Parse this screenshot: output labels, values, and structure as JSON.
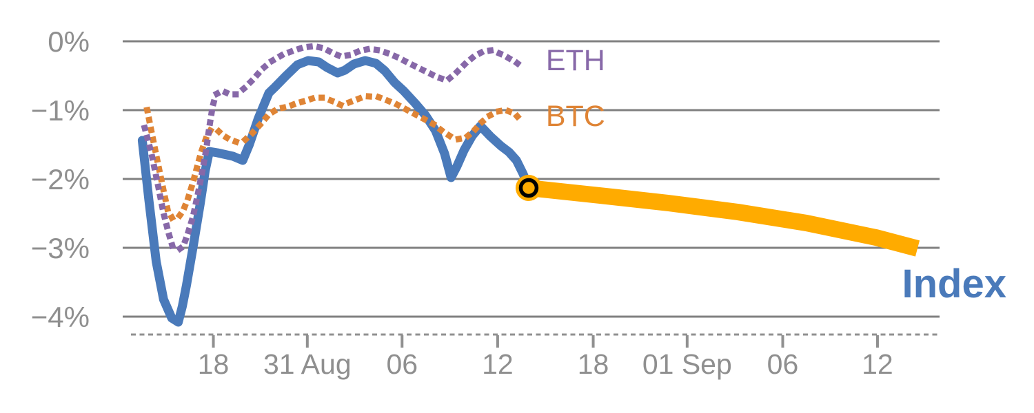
{
  "colors": {
    "grid": "#808080",
    "axis": "#909090",
    "axis_text": "#8F8F8F",
    "index_blue": "#4A7ABA",
    "eth_purple": "#8768A8",
    "btc_orange": "#DF8435",
    "projection_amber": "#FFAB00",
    "marker_ring": "#000000"
  },
  "chart_data": {
    "type": "line",
    "title": "",
    "xlabel": "",
    "ylabel": "",
    "grid": "horizontal",
    "legend_position": "inline-labels",
    "y_axis": {
      "unit": "%",
      "range": [
        -4.5,
        0
      ],
      "ticks": [
        {
          "label": "0%",
          "value": 0
        },
        {
          "label": "−1%",
          "value": -1
        },
        {
          "label": "−2%",
          "value": -2
        },
        {
          "label": "−3%",
          "value": -3
        },
        {
          "label": "−4%",
          "value": -4
        }
      ]
    },
    "x_axis": {
      "style": "dashed-baseline",
      "ticks": [
        {
          "label": "18",
          "t": 11.1
        },
        {
          "label": "31 Aug",
          "t": 22.6
        },
        {
          "label": "06",
          "t": 34.2
        },
        {
          "label": "12",
          "t": 45.9
        },
        {
          "label": "18",
          "t": 57.6
        },
        {
          "label": "01 Sep",
          "t": 69.1
        },
        {
          "label": "06",
          "t": 80.8
        },
        {
          "label": "12",
          "t": 92.4
        }
      ]
    },
    "series": [
      {
        "id": "index",
        "name": "Index",
        "color": "#4A7ABA",
        "line_style": "solid",
        "stroke_width": 13,
        "label": {
          "text": "Index",
          "t": 95.4,
          "value": -3.51,
          "font_size": 58,
          "bold": true
        },
        "points": [
          [
            2.4,
            -1.44
          ],
          [
            3.2,
            -2.3
          ],
          [
            4.1,
            -3.2
          ],
          [
            5.0,
            -3.75
          ],
          [
            6.0,
            -4.02
          ],
          [
            6.8,
            -4.08
          ],
          [
            7.3,
            -3.85
          ],
          [
            7.8,
            -3.55
          ],
          [
            8.6,
            -3.0
          ],
          [
            9.5,
            -2.35
          ],
          [
            10.1,
            -1.88
          ],
          [
            10.6,
            -1.6
          ],
          [
            11.6,
            -1.62
          ],
          [
            13.5,
            -1.67
          ],
          [
            14.7,
            -1.73
          ],
          [
            15.5,
            -1.5
          ],
          [
            16.6,
            -1.12
          ],
          [
            17.9,
            -0.75
          ],
          [
            18.6,
            -0.67
          ],
          [
            20.0,
            -0.5
          ],
          [
            21.4,
            -0.34
          ],
          [
            22.7,
            -0.28
          ],
          [
            24.0,
            -0.3
          ],
          [
            25.0,
            -0.38
          ],
          [
            26.3,
            -0.46
          ],
          [
            27.2,
            -0.42
          ],
          [
            28.3,
            -0.33
          ],
          [
            29.7,
            -0.28
          ],
          [
            31.0,
            -0.32
          ],
          [
            32.1,
            -0.43
          ],
          [
            33.3,
            -0.6
          ],
          [
            34.4,
            -0.72
          ],
          [
            35.8,
            -0.9
          ],
          [
            37.1,
            -1.08
          ],
          [
            38.3,
            -1.3
          ],
          [
            39.4,
            -1.63
          ],
          [
            40.2,
            -1.98
          ],
          [
            40.9,
            -1.82
          ],
          [
            41.8,
            -1.58
          ],
          [
            42.8,
            -1.37
          ],
          [
            43.8,
            -1.23
          ],
          [
            45.0,
            -1.38
          ],
          [
            46.3,
            -1.52
          ],
          [
            47.3,
            -1.61
          ],
          [
            48.2,
            -1.73
          ],
          [
            49.0,
            -1.92
          ],
          [
            49.7,
            -2.12
          ]
        ]
      },
      {
        "id": "index-projection",
        "name": "Index projection",
        "color": "#FFAB00",
        "line_style": "solid",
        "linecap": "butt",
        "stroke_width": 24,
        "points": [
          [
            49.7,
            -2.13
          ],
          [
            58.4,
            -2.24
          ],
          [
            66.8,
            -2.35
          ],
          [
            75.3,
            -2.48
          ],
          [
            83.7,
            -2.64
          ],
          [
            92.2,
            -2.85
          ],
          [
            97.3,
            -3.01
          ]
        ]
      },
      {
        "id": "btc",
        "name": "BTC",
        "color": "#DF8435",
        "line_style": "dotted",
        "stroke_width": 9,
        "label": {
          "text": "BTC",
          "t": 51.8,
          "value": -1.08,
          "font_size": 43,
          "bold": false
        },
        "points": [
          [
            3.0,
            -1.0
          ],
          [
            3.6,
            -1.36
          ],
          [
            4.3,
            -1.77
          ],
          [
            5.0,
            -2.17
          ],
          [
            5.5,
            -2.45
          ],
          [
            6.1,
            -2.58
          ],
          [
            6.8,
            -2.56
          ],
          [
            7.4,
            -2.46
          ],
          [
            8.0,
            -2.28
          ],
          [
            8.6,
            -2.05
          ],
          [
            9.1,
            -1.83
          ],
          [
            9.6,
            -1.61
          ],
          [
            10.2,
            -1.41
          ],
          [
            10.8,
            -1.28
          ],
          [
            11.5,
            -1.28
          ],
          [
            12.2,
            -1.36
          ],
          [
            13.0,
            -1.42
          ],
          [
            13.9,
            -1.46
          ],
          [
            14.9,
            -1.44
          ],
          [
            15.9,
            -1.33
          ],
          [
            16.9,
            -1.2
          ],
          [
            17.9,
            -1.06
          ],
          [
            19.0,
            -0.98
          ],
          [
            20.2,
            -0.95
          ],
          [
            21.3,
            -0.9
          ],
          [
            22.5,
            -0.86
          ],
          [
            23.5,
            -0.82
          ],
          [
            24.6,
            -0.82
          ],
          [
            25.7,
            -0.87
          ],
          [
            26.8,
            -0.93
          ],
          [
            27.9,
            -0.88
          ],
          [
            29.0,
            -0.83
          ],
          [
            30.1,
            -0.8
          ],
          [
            31.3,
            -0.81
          ],
          [
            32.4,
            -0.86
          ],
          [
            33.6,
            -0.92
          ],
          [
            34.7,
            -0.99
          ],
          [
            35.8,
            -1.06
          ],
          [
            36.9,
            -1.13
          ],
          [
            38.0,
            -1.2
          ],
          [
            39.1,
            -1.3
          ],
          [
            40.1,
            -1.38
          ],
          [
            41.1,
            -1.42
          ],
          [
            42.0,
            -1.4
          ],
          [
            43.0,
            -1.3
          ],
          [
            43.9,
            -1.18
          ],
          [
            44.9,
            -1.08
          ],
          [
            45.9,
            -1.02
          ],
          [
            46.9,
            -1.0
          ],
          [
            48.0,
            -1.05
          ],
          [
            49.1,
            -1.2
          ]
        ]
      },
      {
        "id": "eth",
        "name": "ETH",
        "color": "#8768A8",
        "line_style": "dotted",
        "stroke_width": 9,
        "label": {
          "text": "ETH",
          "t": 51.8,
          "value": -0.27,
          "font_size": 43,
          "bold": false
        },
        "points": [
          [
            2.7,
            -1.26
          ],
          [
            3.5,
            -1.62
          ],
          [
            4.3,
            -2.08
          ],
          [
            5.0,
            -2.5
          ],
          [
            5.6,
            -2.78
          ],
          [
            6.1,
            -2.98
          ],
          [
            6.8,
            -3.03
          ],
          [
            7.4,
            -2.98
          ],
          [
            7.9,
            -2.82
          ],
          [
            8.6,
            -2.55
          ],
          [
            9.2,
            -2.22
          ],
          [
            9.7,
            -1.92
          ],
          [
            10.2,
            -1.59
          ],
          [
            10.6,
            -1.25
          ],
          [
            11.0,
            -0.95
          ],
          [
            11.4,
            -0.77
          ],
          [
            12.2,
            -0.72
          ],
          [
            13.1,
            -0.77
          ],
          [
            14.0,
            -0.77
          ],
          [
            14.9,
            -0.68
          ],
          [
            16.0,
            -0.55
          ],
          [
            17.1,
            -0.4
          ],
          [
            18.2,
            -0.29
          ],
          [
            19.5,
            -0.2
          ],
          [
            20.8,
            -0.14
          ],
          [
            22.1,
            -0.09
          ],
          [
            23.4,
            -0.07
          ],
          [
            24.6,
            -0.1
          ],
          [
            25.7,
            -0.17
          ],
          [
            26.7,
            -0.22
          ],
          [
            27.8,
            -0.2
          ],
          [
            29.0,
            -0.14
          ],
          [
            30.2,
            -0.11
          ],
          [
            31.4,
            -0.13
          ],
          [
            32.6,
            -0.18
          ],
          [
            33.8,
            -0.24
          ],
          [
            34.9,
            -0.31
          ],
          [
            36.1,
            -0.38
          ],
          [
            37.3,
            -0.45
          ],
          [
            38.5,
            -0.52
          ],
          [
            39.7,
            -0.57
          ],
          [
            40.8,
            -0.46
          ],
          [
            41.9,
            -0.33
          ],
          [
            43.0,
            -0.22
          ],
          [
            44.1,
            -0.15
          ],
          [
            45.2,
            -0.13
          ],
          [
            46.2,
            -0.18
          ],
          [
            47.2,
            -0.24
          ],
          [
            48.2,
            -0.31
          ],
          [
            49.1,
            -0.39
          ]
        ]
      }
    ],
    "marker": {
      "description": "black-ringed circle where Index history meets projection",
      "t": 49.7,
      "value": -2.13,
      "fill": "#FFAB00",
      "ring_color": "#000000",
      "outer_r": 19,
      "inner_r": 11.5,
      "ring_width": 5.5
    }
  }
}
